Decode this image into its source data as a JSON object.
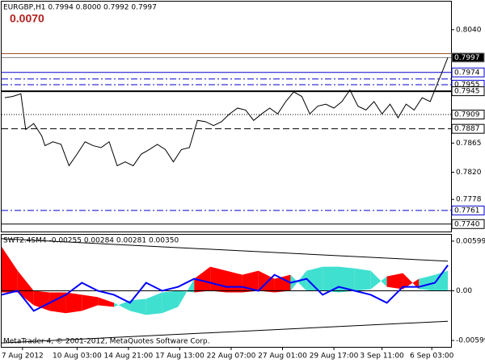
{
  "chart_data": [
    {
      "type": "line",
      "title": "EURGBP,H1 0.7994 0.8000 0.7992 0.7997",
      "annotation": "0.0070",
      "color": "#000000",
      "xlim": [
        0,
        280
      ],
      "ylim": [
        0.77285,
        0.80833
      ],
      "yticks": [
        {
          "value": 0.804,
          "label": "0.8040"
        },
        0.7865,
        {
          "value": 0.782,
          "label": "0.7820"
        },
        0.7778
      ],
      "x": [
        2,
        7,
        12,
        15,
        20,
        25,
        27,
        32,
        37,
        42,
        47,
        52,
        57,
        62,
        67,
        72,
        77,
        82,
        87,
        92,
        97,
        102,
        107,
        112,
        117,
        122,
        127,
        132,
        137,
        142,
        147,
        152,
        157,
        162,
        167,
        172,
        177,
        182,
        187,
        192,
        197,
        202,
        207,
        212,
        217,
        222,
        227,
        232,
        237,
        242,
        247,
        252,
        257,
        262,
        267,
        272,
        275,
        278
      ],
      "values": [
        0.7935,
        0.7937,
        0.7941,
        0.7886,
        0.7895,
        0.7876,
        0.7861,
        0.7867,
        0.7863,
        0.783,
        0.7848,
        0.7867,
        0.7861,
        0.7858,
        0.7867,
        0.783,
        0.7836,
        0.783,
        0.7848,
        0.7855,
        0.7863,
        0.7855,
        0.7836,
        0.7855,
        0.7858,
        0.79,
        0.7898,
        0.7892,
        0.7898,
        0.791,
        0.7919,
        0.7916,
        0.79,
        0.791,
        0.7919,
        0.791,
        0.7929,
        0.7944,
        0.7937,
        0.791,
        0.7922,
        0.7925,
        0.7919,
        0.7929,
        0.7947,
        0.7922,
        0.7916,
        0.7929,
        0.791,
        0.7925,
        0.7904,
        0.7925,
        0.7916,
        0.7935,
        0.7929,
        0.796,
        0.7978,
        0.7997
      ],
      "levels": [
        {
          "value": 0.8003,
          "color": "#a0522d",
          "dash": "solid"
        },
        {
          "value": 0.7997,
          "label": "0.7997",
          "color": "#808080",
          "dash": "solid",
          "highlight": true
        },
        {
          "value": 0.7974,
          "label": "0.7974",
          "color": "#0000cd",
          "dash": "solid"
        },
        {
          "value": 0.7964,
          "color": "#0000cd",
          "dash": "dashdot"
        },
        {
          "value": 0.7955,
          "label": "0.7955",
          "color": "#0000cd",
          "dash": "dashdot"
        },
        {
          "value": 0.7945,
          "label": "0.7945",
          "color": "#000000",
          "dash": "thick"
        },
        {
          "value": 0.7909,
          "label": "0.7909",
          "color": "#000000",
          "dash": "dot"
        },
        {
          "value": 0.7887,
          "label": "0.7887",
          "color": "#000000",
          "dash": "dash"
        },
        {
          "value": 0.7761,
          "label": "0.7761",
          "color": "#0000cd",
          "dash": "dashdot"
        },
        {
          "value": 0.774,
          "label": "0.7740",
          "color": "#000000",
          "dash": "solid"
        }
      ]
    },
    {
      "type": "line",
      "title": "SWT2.4SM4 -0.00255 0.00284 0.00281 0.00350",
      "annotation": "MetaTrader 4, © 2001-2012, MetaQuotes Software Corp.",
      "xlim": [
        0,
        280
      ],
      "ylim": [
        -0.00676,
        0.00676
      ],
      "yticks": [
        0.00599,
        {
          "value": 0,
          "label": "0.00"
        },
        -0.00599
      ],
      "xticks": [
        {
          "value": 13,
          "label": "7 Aug 2012"
        },
        {
          "value": 47,
          "label": "10 Aug 03:00"
        },
        {
          "value": 79,
          "label": "14 Aug 21:00"
        },
        {
          "value": 111,
          "label": "17 Aug 13:00"
        },
        {
          "value": 143,
          "label": "22 Aug 07:00"
        },
        {
          "value": 175,
          "label": "27 Aug 01:00"
        },
        {
          "value": 207,
          "label": "29 Aug 17:00"
        },
        {
          "value": 237,
          "label": "3 Sep 11:00"
        },
        {
          "value": 268,
          "label": "6 Sep 03:00"
        }
      ],
      "cloud": {
        "x": [
          0,
          10,
          20,
          30,
          40,
          50,
          60,
          70,
          80,
          90,
          100,
          110,
          120,
          130,
          140,
          150,
          160,
          170,
          180,
          190,
          200,
          210,
          220,
          230,
          240,
          250,
          260,
          270,
          278
        ],
        "fast": [
          0.00531,
          0.00242,
          0,
          -0.00019,
          -0.00019,
          -0.00048,
          -0.00077,
          -0.00145,
          -0.00242,
          -0.0029,
          -0.0027,
          -0.00193,
          0.00145,
          0.0029,
          0.00242,
          0.00193,
          0.00242,
          0.00145,
          0.00193,
          0,
          0,
          -0.00019,
          0,
          0.00019,
          0.00174,
          0.00213,
          0.00019,
          0,
          0
        ],
        "slow": [
          -0.00019,
          -0.00019,
          -0.00174,
          -0.00242,
          -0.0027,
          -0.00242,
          -0.00174,
          -0.00193,
          -0.00116,
          -0.00097,
          -0.00019,
          0,
          -0.00019,
          0,
          -0.00019,
          -0.00019,
          0,
          -0.00019,
          0,
          0.00242,
          0.0029,
          0.0029,
          0.0027,
          0.00242,
          0.00048,
          0.00019,
          0.00145,
          0.00193,
          0.00242
        ],
        "up_color": "#ff0000",
        "down_color": "#40e0d0"
      },
      "series": [
        {
          "color": "#0000ff",
          "width": 2,
          "x": [
            0,
            10,
            20,
            30,
            40,
            50,
            60,
            70,
            80,
            90,
            100,
            110,
            120,
            130,
            140,
            150,
            160,
            170,
            180,
            190,
            200,
            210,
            220,
            230,
            240,
            250,
            260,
            270,
            278
          ],
          "values": [
            -0.00048,
            0,
            -0.00242,
            -0.00145,
            -0.00048,
            0.00097,
            0,
            -0.00048,
            -0.00145,
            0.00097,
            0,
            0.00048,
            0.00145,
            0.00097,
            0.00048,
            0.00048,
            0,
            0.00193,
            0.00097,
            0.00145,
            -0.00048,
            0.00048,
            0,
            -0.00048,
            -0.00145,
            0.00048,
            0.00048,
            0.00097,
            0.00309
          ]
        },
        {
          "color": "#000000",
          "width": 1,
          "x": [
            0,
            278
          ],
          "values": [
            0.00628,
            0.00357
          ]
        },
        {
          "color": "#000000",
          "width": 1,
          "x": [
            0,
            278
          ],
          "values": [
            -0.00628,
            -0.00367
          ]
        }
      ]
    }
  ]
}
